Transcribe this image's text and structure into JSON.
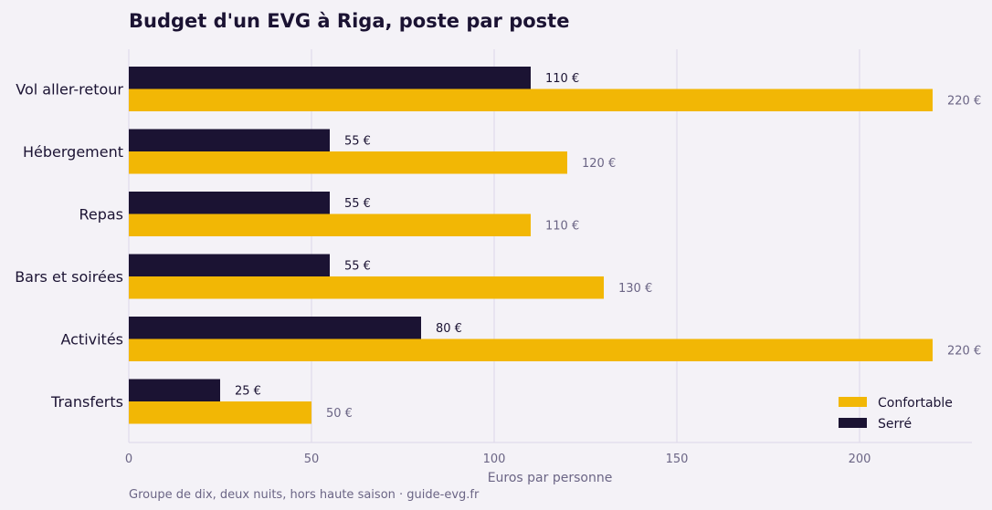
{
  "colors": {
    "background": "#f4f2f7",
    "confortable": "#f2b705",
    "serre": "#1b1333",
    "grid": "#dcd6e8",
    "axis_text": "#6b6585",
    "title_text": "#1b1333"
  },
  "chart_data": {
    "type": "bar",
    "orientation": "horizontal",
    "title": "Budget d'un EVG à Riga, poste par poste",
    "xlabel": "Euros par personne",
    "ylabel": "",
    "footnote": "Groupe de dix, deux nuits, hors haute saison · guide-evg.fr",
    "xlim": [
      0,
      230
    ],
    "x_ticks": [
      0,
      50,
      100,
      150,
      200
    ],
    "grid": true,
    "legend_position": "bottom-right",
    "value_suffix": " €",
    "categories": [
      "Vol aller-retour",
      "Hébergement",
      "Repas",
      "Bars et soirées",
      "Activités",
      "Transferts"
    ],
    "series": [
      {
        "name": "Serré",
        "values": [
          110,
          55,
          55,
          55,
          80,
          25
        ],
        "color": "#1b1333"
      },
      {
        "name": "Confortable",
        "values": [
          220,
          120,
          110,
          130,
          220,
          50
        ],
        "color": "#f2b705"
      }
    ],
    "legend_order": [
      "Confortable",
      "Serré"
    ]
  }
}
